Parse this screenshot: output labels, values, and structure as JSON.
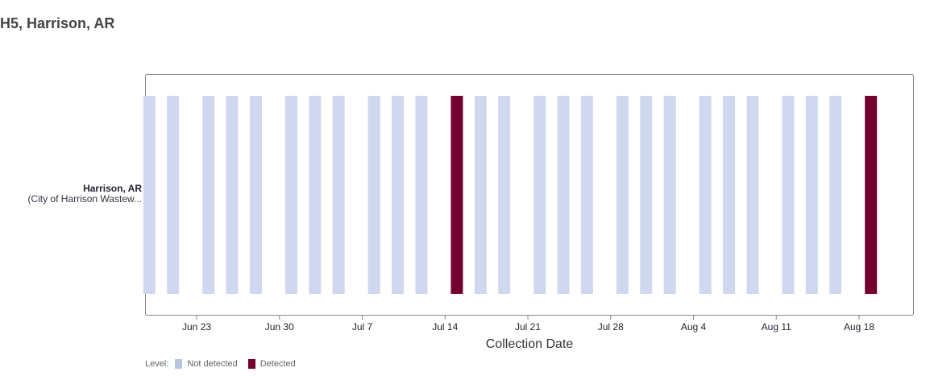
{
  "page": {
    "title": "H5, Harrison, AR"
  },
  "row": {
    "name": "Harrison, AR",
    "subtitle": "(City of Harrison Wastew..."
  },
  "legend": {
    "label": "Level:",
    "items": [
      {
        "label": "Not detected",
        "color": "#b8c6e3"
      },
      {
        "label": "Detected",
        "color": "#740030"
      }
    ]
  },
  "chart_data": {
    "type": "bar",
    "title": "H5, Harrison, AR",
    "xlabel": "Collection Date",
    "ylabel": "",
    "x_type": "date",
    "xlim": [
      "2024-06-18",
      "2024-08-21"
    ],
    "xticks": [
      {
        "date": "2024-06-23",
        "label": "Jun 23"
      },
      {
        "date": "2024-06-30",
        "label": "Jun 30"
      },
      {
        "date": "2024-07-07",
        "label": "Jul 7"
      },
      {
        "date": "2024-07-14",
        "label": "Jul 14"
      },
      {
        "date": "2024-07-21",
        "label": "Jul 21"
      },
      {
        "date": "2024-07-28",
        "label": "Jul 28"
      },
      {
        "date": "2024-08-04",
        "label": "Aug 4"
      },
      {
        "date": "2024-08-11",
        "label": "Aug 11"
      },
      {
        "date": "2024-08-18",
        "label": "Aug 18"
      }
    ],
    "categories": [
      "Harrison, AR"
    ],
    "levels": [
      "Not detected",
      "Detected"
    ],
    "colors": {
      "Not detected": "#cfd8ee",
      "Detected": "#740030"
    },
    "points": [
      {
        "date": "2024-06-19",
        "level": "Not detected"
      },
      {
        "date": "2024-06-21",
        "level": "Not detected"
      },
      {
        "date": "2024-06-24",
        "level": "Not detected"
      },
      {
        "date": "2024-06-26",
        "level": "Not detected"
      },
      {
        "date": "2024-06-28",
        "level": "Not detected"
      },
      {
        "date": "2024-07-01",
        "level": "Not detected"
      },
      {
        "date": "2024-07-03",
        "level": "Not detected"
      },
      {
        "date": "2024-07-05",
        "level": "Not detected"
      },
      {
        "date": "2024-07-08",
        "level": "Not detected"
      },
      {
        "date": "2024-07-10",
        "level": "Not detected"
      },
      {
        "date": "2024-07-12",
        "level": "Not detected"
      },
      {
        "date": "2024-07-15",
        "level": "Detected"
      },
      {
        "date": "2024-07-17",
        "level": "Not detected"
      },
      {
        "date": "2024-07-19",
        "level": "Not detected"
      },
      {
        "date": "2024-07-22",
        "level": "Not detected"
      },
      {
        "date": "2024-07-24",
        "level": "Not detected"
      },
      {
        "date": "2024-07-26",
        "level": "Not detected"
      },
      {
        "date": "2024-07-29",
        "level": "Not detected"
      },
      {
        "date": "2024-07-31",
        "level": "Not detected"
      },
      {
        "date": "2024-08-02",
        "level": "Not detected"
      },
      {
        "date": "2024-08-05",
        "level": "Not detected"
      },
      {
        "date": "2024-08-07",
        "level": "Not detected"
      },
      {
        "date": "2024-08-09",
        "level": "Not detected"
      },
      {
        "date": "2024-08-12",
        "level": "Not detected"
      },
      {
        "date": "2024-08-14",
        "level": "Not detected"
      },
      {
        "date": "2024-08-16",
        "level": "Not detected"
      },
      {
        "date": "2024-08-19",
        "level": "Detected"
      }
    ],
    "grid": false,
    "legend_position": "bottom-left"
  }
}
